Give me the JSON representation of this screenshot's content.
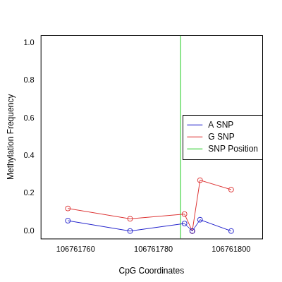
{
  "chart_data": {
    "type": "line",
    "x_label": "CpG Coordinates",
    "y_label": "Methylation Frequency",
    "x": [
      106761758,
      106761774,
      106761788,
      106761790,
      106761792,
      106761800
    ],
    "series": [
      {
        "name": "A SNP",
        "color": "#2222cc",
        "marker": "circle",
        "values": [
          0.055,
          0.0,
          0.04,
          0.0,
          0.06,
          0.0
        ]
      },
      {
        "name": "G SNP",
        "color": "#dd3333",
        "marker": "circle",
        "values": [
          0.12,
          0.065,
          0.09,
          0.0,
          0.27,
          0.22
        ]
      }
    ],
    "snp_position": {
      "name": "SNP Position",
      "color": "#22cc22",
      "x": 106761787
    },
    "xlim": [
      106761751,
      106761808
    ],
    "xticks": [
      106761760,
      106761780,
      106761800
    ],
    "ylim": [
      -0.04,
      1.04
    ],
    "yticks": [
      {
        "value": 0,
        "label": "0.0"
      },
      {
        "value": 0.2,
        "label": "0.2"
      },
      {
        "value": 0.4,
        "label": "0.4"
      },
      {
        "value": 0.6,
        "label": "0.6"
      },
      {
        "value": 0.8,
        "label": "0.8"
      },
      {
        "value": 1.0,
        "label": "1.0"
      }
    ],
    "grid": false,
    "legend": "right"
  }
}
